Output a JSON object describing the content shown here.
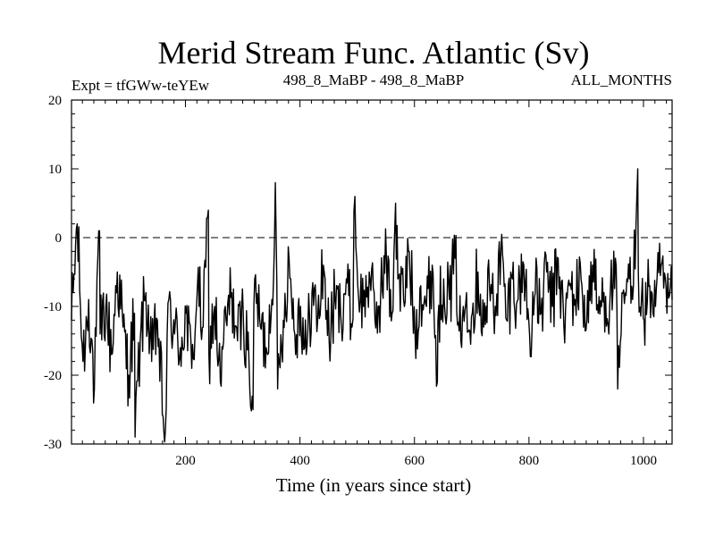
{
  "header": {
    "title": "Merid Stream Func. Atlantic (Sv)",
    "left_label": "Expt = tfGWw-teYEw",
    "center_label": "498_8_MaBP - 498_8_MaBP",
    "right_label": "ALL_MONTHS"
  },
  "chart_data": {
    "type": "line",
    "title": "Merid Stream Func. Atlantic (Sv)",
    "xlabel": "Time (in years since start)",
    "ylabel": "",
    "xlim": [
      1,
      1050
    ],
    "ylim": [
      -30,
      20
    ],
    "x_ticks": [
      200,
      400,
      600,
      800,
      1000
    ],
    "x_tick_labels": [
      "200",
      "400",
      "600",
      "800",
      "1000"
    ],
    "y_ticks": [
      -30,
      -20,
      -10,
      0,
      10,
      20
    ],
    "y_tick_labels": [
      "-30",
      "-20",
      "-10",
      "0",
      "10",
      "20"
    ],
    "reference_line": {
      "y": 0,
      "style": "dashed"
    },
    "line_color": "#000000",
    "series": [
      {
        "x": [
          1,
          11,
          21,
          31,
          41,
          51,
          61,
          71,
          81,
          91,
          101,
          111,
          121,
          131,
          141,
          151,
          161,
          171,
          181,
          191,
          201,
          211,
          221,
          231,
          241,
          251,
          261,
          271,
          281,
          291,
          301,
          311,
          321,
          331,
          341,
          351,
          361,
          371,
          381,
          391,
          401,
          411,
          421,
          431,
          441,
          451,
          461,
          471,
          481,
          491,
          501,
          511,
          521,
          531,
          541,
          551,
          561,
          571,
          581,
          591,
          601,
          611,
          621,
          631,
          641,
          651,
          661,
          671,
          681,
          691,
          701,
          711,
          721,
          731,
          741,
          751,
          761,
          771,
          781,
          791,
          801,
          811,
          821,
          831,
          841,
          851,
          861,
          871,
          881,
          891,
          901,
          911,
          921,
          931,
          941,
          951,
          961,
          971,
          981,
          991,
          1001,
          1011,
          1021,
          1031,
          1041,
          1050
        ],
        "values": [
          -12,
          2,
          -18,
          -9,
          -22,
          -14,
          -10,
          -17,
          -5,
          -13,
          -20,
          -11,
          -15,
          -8,
          -18,
          -12,
          -26,
          -9,
          -14,
          -16,
          -11,
          -19,
          -7,
          -13,
          -17,
          -10,
          -21,
          -12,
          -8,
          -15,
          -11,
          -18,
          -6,
          -13,
          -16,
          -9,
          -22,
          -12,
          -3,
          -14,
          -10,
          -17,
          -8,
          -12,
          -4,
          -15,
          -9,
          -11,
          -6,
          -13,
          -7,
          -10,
          -5,
          -12,
          -8,
          -3,
          -11,
          -6,
          -9,
          -2,
          -14,
          -7,
          -10,
          -4,
          -12,
          -6,
          -9,
          -3,
          -15,
          -8,
          -11,
          -5,
          -13,
          -7,
          -10,
          -2,
          -12,
          -6,
          -9,
          -4,
          -14,
          -8,
          -11,
          -5,
          -10,
          -3,
          -13,
          -7,
          -9,
          -6,
          -12,
          -4,
          -11,
          -8,
          -10,
          -3,
          -14,
          -6,
          -9,
          -5,
          -12,
          -7,
          -10,
          -4,
          -11,
          -9
        ],
        "spike_points": [
          {
            "x": 50,
            "y": 1
          },
          {
            "x": 112,
            "y": -29
          },
          {
            "x": 165,
            "y": -28
          },
          {
            "x": 240,
            "y": 4
          },
          {
            "x": 318,
            "y": -25
          },
          {
            "x": 357,
            "y": 8
          },
          {
            "x": 496,
            "y": 6
          },
          {
            "x": 567,
            "y": 5
          },
          {
            "x": 640,
            "y": -21
          },
          {
            "x": 955,
            "y": -22
          },
          {
            "x": 990,
            "y": 10
          }
        ]
      }
    ]
  }
}
